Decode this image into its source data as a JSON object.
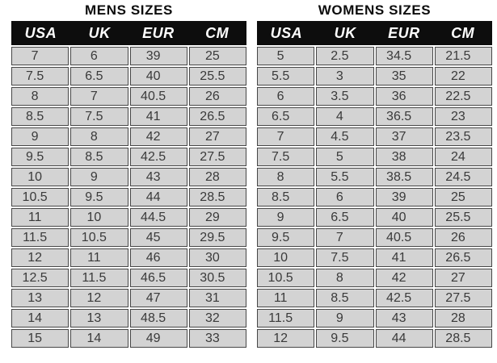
{
  "colors": {
    "page_background": "#ffffff",
    "header_background": "#0d0d0d",
    "header_text": "#ffffff",
    "cell_background": "#d3d3d3",
    "cell_border": "#474747",
    "cell_text": "#3a3a3a",
    "title_text": "#0d0d0d"
  },
  "chart_data": [
    {
      "type": "table",
      "title": "MENS SIZES",
      "columns": [
        "USA",
        "UK",
        "EUR",
        "CM"
      ],
      "rows": [
        [
          "7",
          "6",
          "39",
          "25"
        ],
        [
          "7.5",
          "6.5",
          "40",
          "25.5"
        ],
        [
          "8",
          "7",
          "40.5",
          "26"
        ],
        [
          "8.5",
          "7.5",
          "41",
          "26.5"
        ],
        [
          "9",
          "8",
          "42",
          "27"
        ],
        [
          "9.5",
          "8.5",
          "42.5",
          "27.5"
        ],
        [
          "10",
          "9",
          "43",
          "28"
        ],
        [
          "10.5",
          "9.5",
          "44",
          "28.5"
        ],
        [
          "11",
          "10",
          "44.5",
          "29"
        ],
        [
          "11.5",
          "10.5",
          "45",
          "29.5"
        ],
        [
          "12",
          "11",
          "46",
          "30"
        ],
        [
          "12.5",
          "11.5",
          "46.5",
          "30.5"
        ],
        [
          "13",
          "12",
          "47",
          "31"
        ],
        [
          "14",
          "13",
          "48.5",
          "32"
        ],
        [
          "15",
          "14",
          "49",
          "33"
        ]
      ]
    },
    {
      "type": "table",
      "title": "WOMENS SIZES",
      "columns": [
        "USA",
        "UK",
        "EUR",
        "CM"
      ],
      "rows": [
        [
          "5",
          "2.5",
          "34.5",
          "21.5"
        ],
        [
          "5.5",
          "3",
          "35",
          "22"
        ],
        [
          "6",
          "3.5",
          "36",
          "22.5"
        ],
        [
          "6.5",
          "4",
          "36.5",
          "23"
        ],
        [
          "7",
          "4.5",
          "37",
          "23.5"
        ],
        [
          "7.5",
          "5",
          "38",
          "24"
        ],
        [
          "8",
          "5.5",
          "38.5",
          "24.5"
        ],
        [
          "8.5",
          "6",
          "39",
          "25"
        ],
        [
          "9",
          "6.5",
          "40",
          "25.5"
        ],
        [
          "9.5",
          "7",
          "40.5",
          "26"
        ],
        [
          "10",
          "7.5",
          "41",
          "26.5"
        ],
        [
          "10.5",
          "8",
          "42",
          "27"
        ],
        [
          "11",
          "8.5",
          "42.5",
          "27.5"
        ],
        [
          "11.5",
          "9",
          "43",
          "28"
        ],
        [
          "12",
          "9.5",
          "44",
          "28.5"
        ]
      ]
    }
  ]
}
